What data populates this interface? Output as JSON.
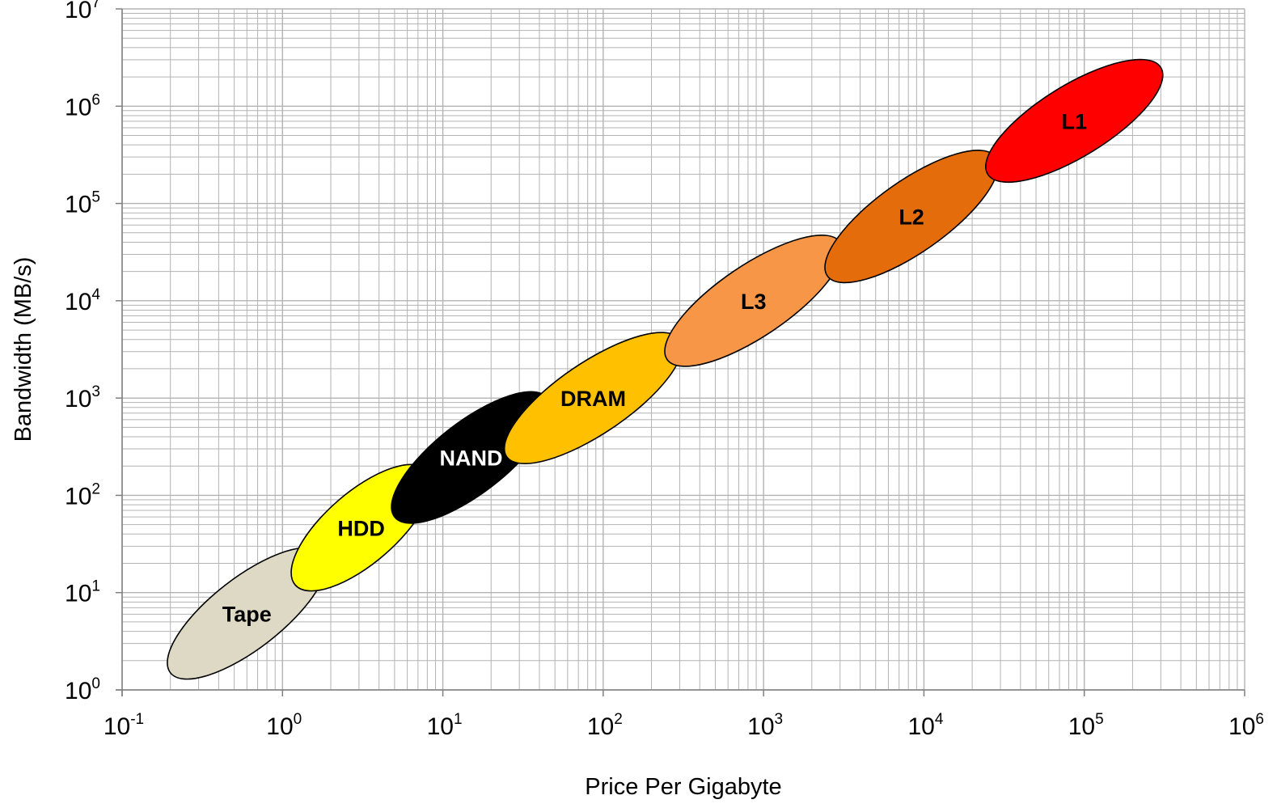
{
  "chart_data": {
    "type": "scatter",
    "title": "",
    "xlabel": "Price Per Gigabyte",
    "ylabel": "Bandwidth (MB/s)",
    "xscale": "log",
    "yscale": "log",
    "xlim": [
      0.1,
      1000000
    ],
    "ylim": [
      1,
      10000000
    ],
    "grid": true,
    "x_ticks": [
      {
        "base": "10",
        "exp": "-1"
      },
      {
        "base": "10",
        "exp": "0"
      },
      {
        "base": "10",
        "exp": "1"
      },
      {
        "base": "10",
        "exp": "2"
      },
      {
        "base": "10",
        "exp": "3"
      },
      {
        "base": "10",
        "exp": "4"
      },
      {
        "base": "10",
        "exp": "5"
      },
      {
        "base": "10",
        "exp": "6"
      }
    ],
    "y_ticks": [
      {
        "base": "10",
        "exp": "0"
      },
      {
        "base": "10",
        "exp": "1"
      },
      {
        "base": "10",
        "exp": "2"
      },
      {
        "base": "10",
        "exp": "3"
      },
      {
        "base": "10",
        "exp": "4"
      },
      {
        "base": "10",
        "exp": "5"
      },
      {
        "base": "10",
        "exp": "6"
      },
      {
        "base": "10",
        "exp": "7"
      }
    ],
    "regions": [
      {
        "label": "Tape",
        "price_range": [
          0.2,
          1.8
        ],
        "bandwidth_range": [
          1.5,
          25
        ],
        "color": "#ddd9c4",
        "text_color": "#000000"
      },
      {
        "label": "HDD",
        "price_range": [
          1.2,
          8
        ],
        "bandwidth_range": [
          12,
          180
        ],
        "color": "#ffff00",
        "text_color": "#000000"
      },
      {
        "label": "NAND",
        "price_range": [
          5,
          45
        ],
        "bandwidth_range": [
          60,
          1000
        ],
        "color": "#000000",
        "text_color": "#ffffff"
      },
      {
        "label": "DRAM",
        "price_range": [
          25,
          300
        ],
        "bandwidth_range": [
          250,
          4000
        ],
        "color": "#ffc000",
        "text_color": "#000000"
      },
      {
        "label": "L3",
        "price_range": [
          250,
          3000
        ],
        "bandwidth_range": [
          2500,
          40000
        ],
        "color": "#f79646",
        "text_color": "#000000"
      },
      {
        "label": "L2",
        "price_range": [
          2500,
          28000
        ],
        "bandwidth_range": [
          18000,
          300000
        ],
        "color": "#e46c0a",
        "text_color": "#000000"
      },
      {
        "label": "L1",
        "price_range": [
          25000,
          300000
        ],
        "bandwidth_range": [
          200000,
          2500000
        ],
        "color": "#ff0000",
        "text_color": "#000000"
      }
    ],
    "colors": {
      "grid": "#b3b3b3",
      "axis": "#7f7f7f",
      "outline": "#000000"
    }
  }
}
